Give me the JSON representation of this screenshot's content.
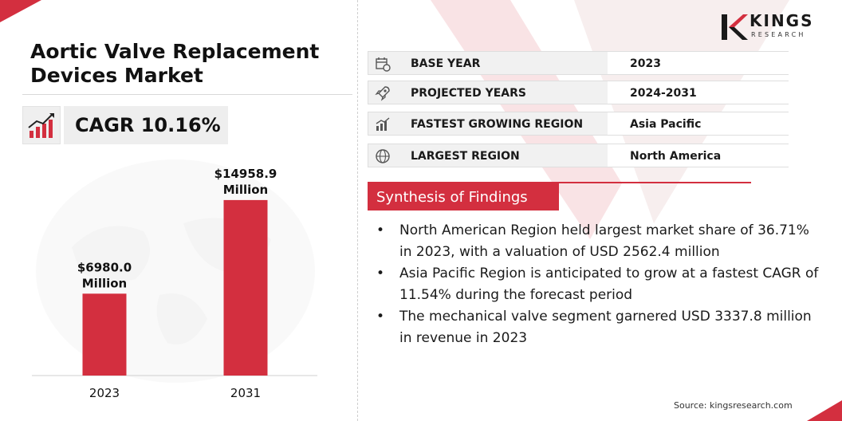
{
  "title": "Aortic Valve Replacement Devices Market",
  "cagr": "CAGR 10.16%",
  "logo": {
    "name": "KINGS",
    "tagline": "RESEARCH"
  },
  "info_rows": [
    {
      "icon": "calendar-icon",
      "label": "BASE YEAR",
      "value": "2023"
    },
    {
      "icon": "rocket-icon",
      "label": "PROJECTED YEARS",
      "value": "2024-2031"
    },
    {
      "icon": "growth-chart-icon",
      "label": "FASTEST GROWING REGION",
      "value": "Asia Pacific"
    },
    {
      "icon": "globe-icon",
      "label": "LARGEST REGION",
      "value": "North America"
    }
  ],
  "synthesis": {
    "heading": "Synthesis of Findings",
    "bullet": "•",
    "points": [
      "North American Region held largest market share of 36.71% in 2023, with a valuation of USD 2562.4 million",
      "Asia Pacific Region is anticipated to grow at a fastest CAGR of 11.54% during the forecast period",
      "The mechanical valve segment garnered USD 3337.8 million in revenue in 2023"
    ]
  },
  "source": "Source: kingsresearch.com",
  "colors": {
    "accent": "#d32f3f",
    "panel": "#f1f1f1"
  },
  "chart_data": {
    "type": "bar",
    "categories": [
      "2023",
      "2031"
    ],
    "values": [
      6980.0,
      14958.9
    ],
    "value_labels": [
      [
        "$6980.0",
        "Million"
      ],
      [
        "$14958.9",
        "Million"
      ]
    ],
    "title": "",
    "xlabel": "",
    "ylabel": "",
    "ylim": [
      0,
      15700
    ],
    "grid": false,
    "bar_color": "#d32f3f"
  }
}
